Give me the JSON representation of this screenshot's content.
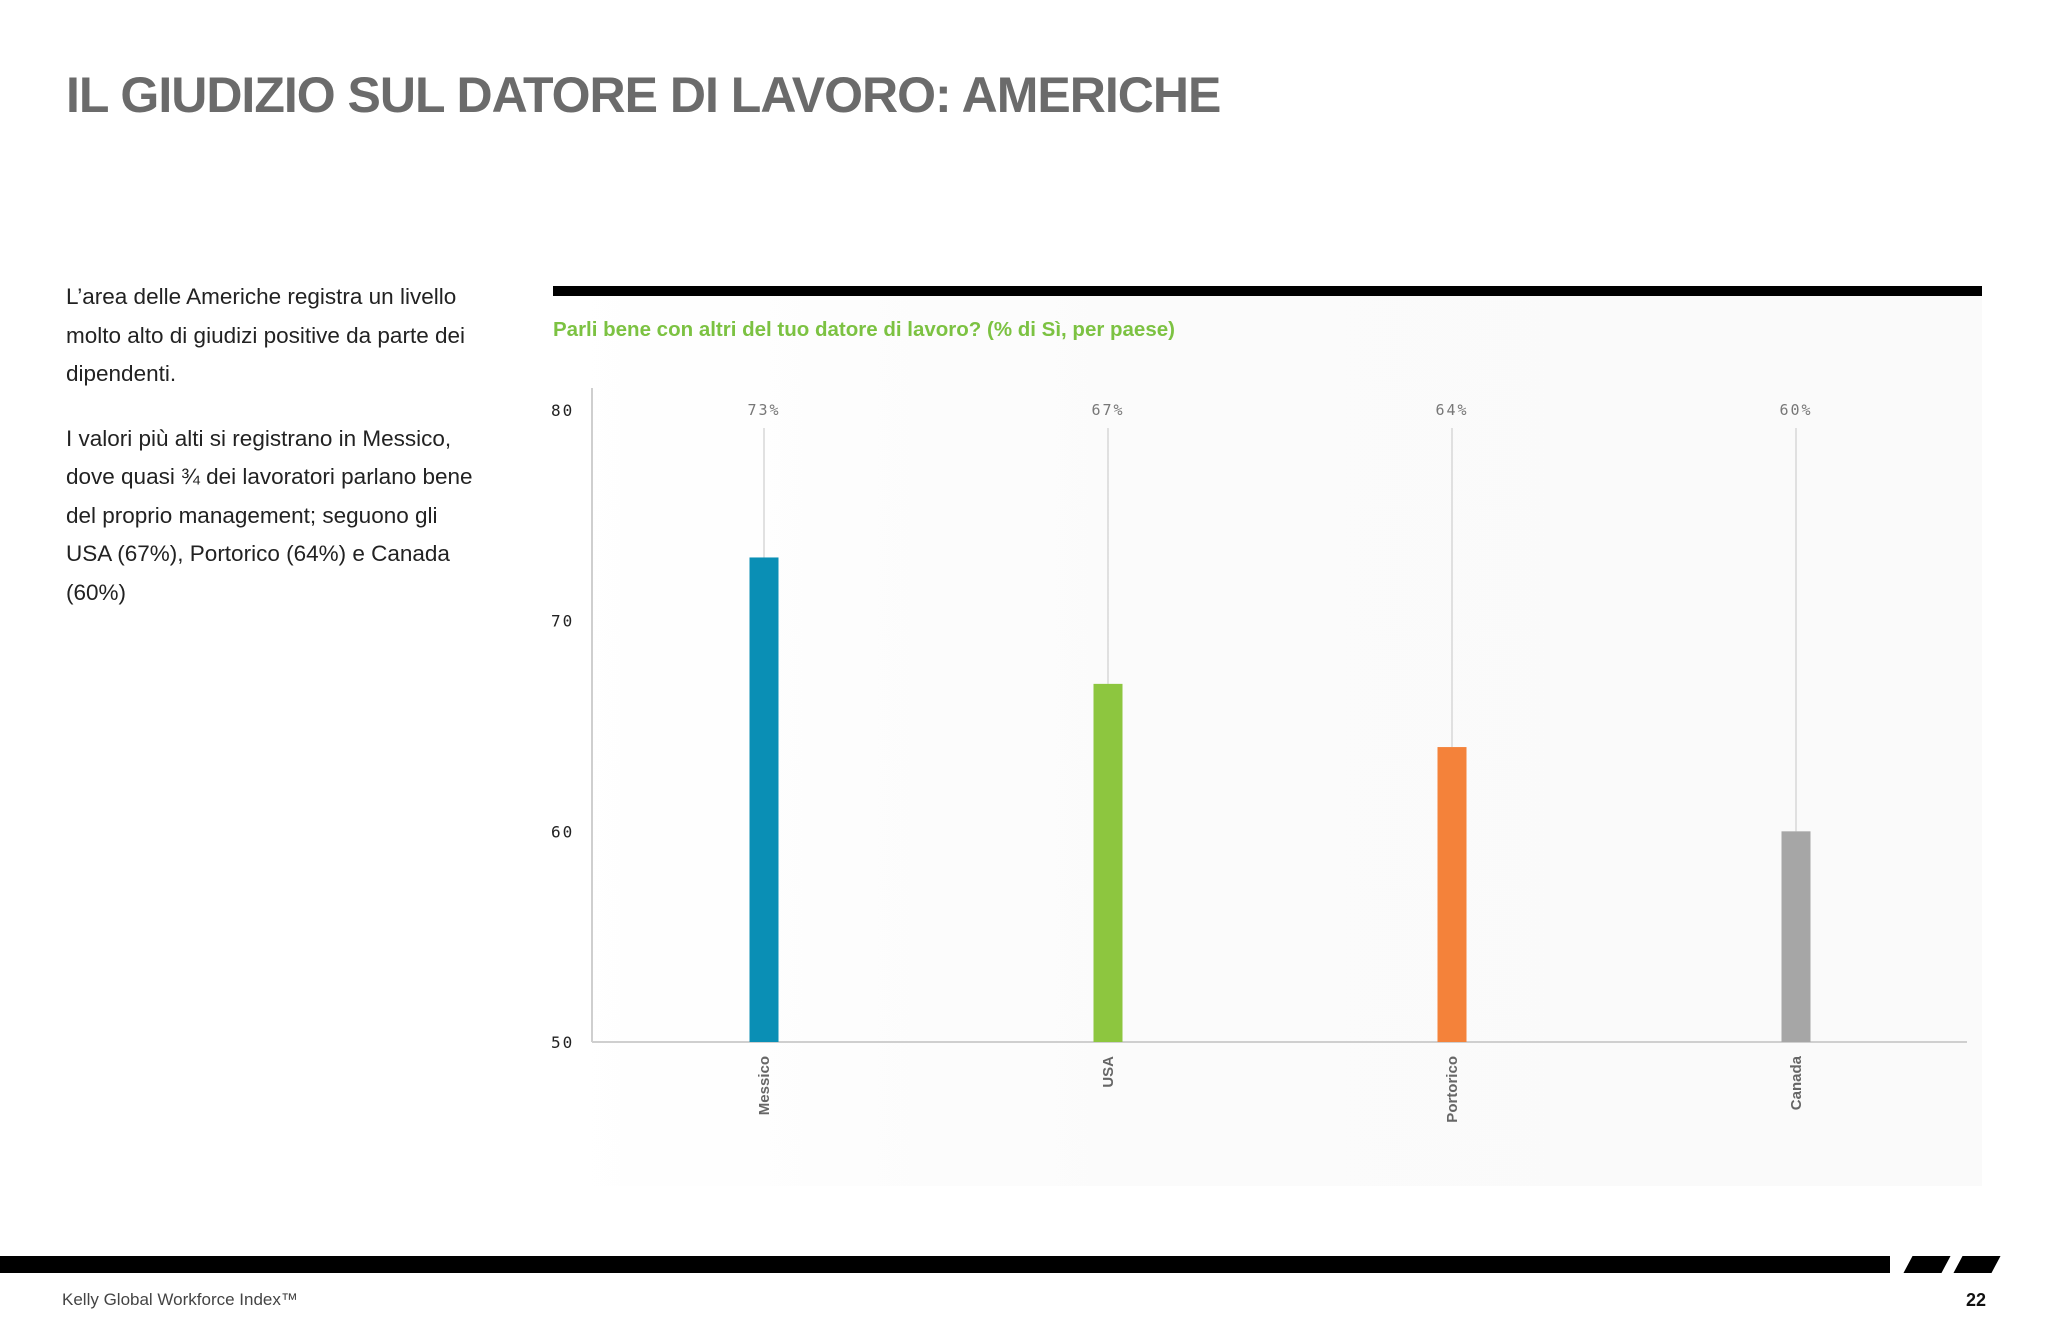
{
  "page": {
    "title": "IL GIUDIZIO SUL DATORE DI LAVORO: AMERICHE",
    "intro_paragraphs": [
      "L’area delle Americhe registra un livello molto alto di giudizi positive da parte dei dipendenti.",
      "I valori più alti si registrano in Messico, dove quasi ¾ dei lavoratori parlano bene del proprio management; seguono gli USA (67%), Portorico (64%) e Canada (60%)"
    ]
  },
  "chart_subtitle": "Parli bene con altri del tuo datore di lavoro? (% di Sì, per paese)",
  "chart_data": {
    "type": "bar",
    "title": "Parli bene con altri del tuo datore di lavoro? (% di Sì, per paese)",
    "categories": [
      "Messico",
      "USA",
      "Portorico",
      "Canada"
    ],
    "values": [
      73,
      67,
      64,
      60
    ],
    "value_labels": [
      "73%",
      "67%",
      "64%",
      "60%"
    ],
    "colors": [
      "#0a8fb5",
      "#8dc63f",
      "#f4823a",
      "#a6a6a6"
    ],
    "ylim": [
      50,
      80
    ],
    "yticks": [
      "50",
      "60",
      "70",
      "80"
    ],
    "xlabel": "",
    "ylabel": "",
    "grid": false,
    "legend": "none"
  },
  "footer": {
    "left_text": "Kelly Global Workforce Index™",
    "page_number": "22"
  }
}
